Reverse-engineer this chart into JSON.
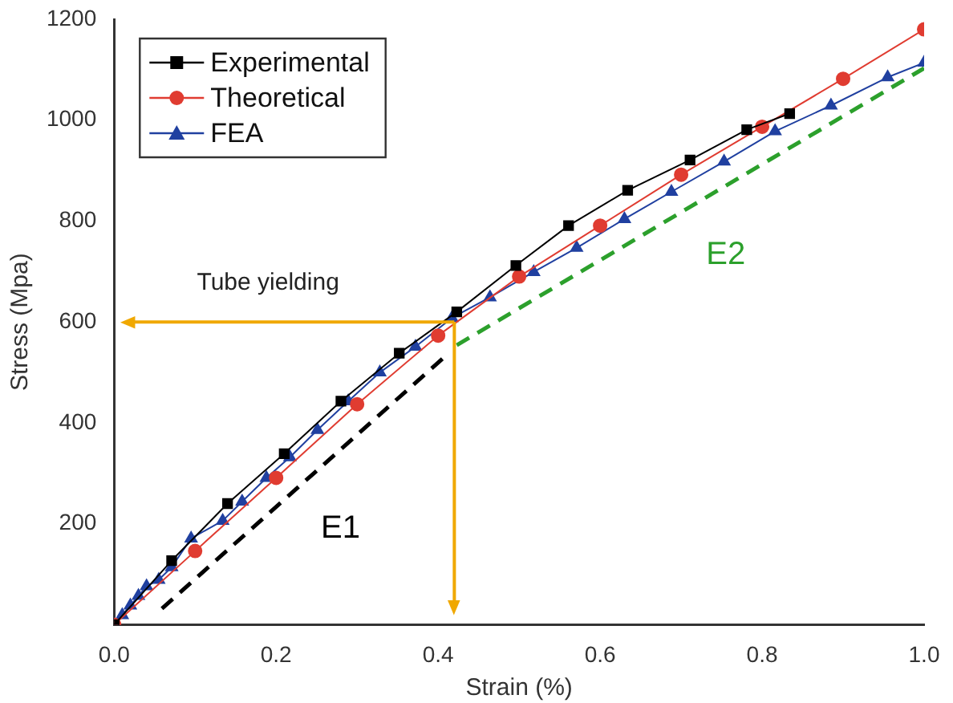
{
  "chart_data": {
    "type": "line",
    "xlabel": "Strain (%)",
    "ylabel": "Stress (Mpa)",
    "xlim": [
      0,
      1
    ],
    "xticks": [
      {
        "value": 0,
        "label": "0.0"
      },
      0.2,
      0.4,
      0.6,
      0.8,
      {
        "value": 1,
        "label": "1.0"
      }
    ],
    "ylim": [
      0,
      1200
    ],
    "yticks": [
      200,
      400,
      600,
      800,
      1000,
      1200
    ],
    "grid": false,
    "legend": "top left",
    "series": [
      {
        "name": "Experimental",
        "color": "#000000",
        "marker": "square",
        "x": [
          0,
          0.071,
          0.14,
          0.21,
          0.28,
          0.352,
          0.423,
          0.496,
          0.561,
          0.634,
          0.711,
          0.781,
          0.834
        ],
        "values": [
          0,
          127,
          240,
          339,
          443,
          538,
          620,
          712,
          791,
          861,
          921,
          981,
          1013
        ]
      },
      {
        "name": "Theoretical",
        "color": "#e03c31",
        "marker": "circle",
        "x": [
          0,
          0.1,
          0.2,
          0.3,
          0.4,
          0.5,
          0.6,
          0.7,
          0.8,
          0.9,
          1.0
        ],
        "values": [
          0,
          146,
          291,
          437,
          573,
          690,
          791,
          892,
          987,
          1082,
          1180
        ]
      },
      {
        "name": "FEA",
        "color": "#2040a0",
        "marker": "triangle",
        "x": [
          0,
          0.01,
          0.02,
          0.03,
          0.04,
          0.055,
          0.071,
          0.095,
          0.134,
          0.158,
          0.188,
          0.217,
          0.251,
          0.289,
          0.328,
          0.372,
          0.417,
          0.464,
          0.518,
          0.571,
          0.63,
          0.688,
          0.753,
          0.816,
          0.885,
          0.955,
          1.0
        ],
        "values": [
          0,
          19,
          38,
          57,
          76,
          89,
          114,
          171,
          206,
          244,
          291,
          332,
          386,
          443,
          500,
          551,
          608,
          649,
          699,
          747,
          804,
          858,
          918,
          978,
          1029,
          1085,
          1114
        ]
      },
      {
        "name": "E1",
        "color": "#000000",
        "marker": "none",
        "line_style": "dashed",
        "x": [
          0.059,
          0.413
        ],
        "values": [
          32,
          538
        ]
      },
      {
        "name": "E2",
        "color": "#2ca02c",
        "marker": "none",
        "line_style": "dashed",
        "x": [
          0.423,
          1.0
        ],
        "values": [
          554,
          1103
        ]
      }
    ],
    "ref_lines": [
      {
        "axis": "y",
        "value": 600,
        "color": "#f0a800"
      },
      {
        "axis": "x",
        "value": 0.42,
        "color": "#f0a800"
      }
    ],
    "annotations": [
      "Tube yielding"
    ]
  }
}
